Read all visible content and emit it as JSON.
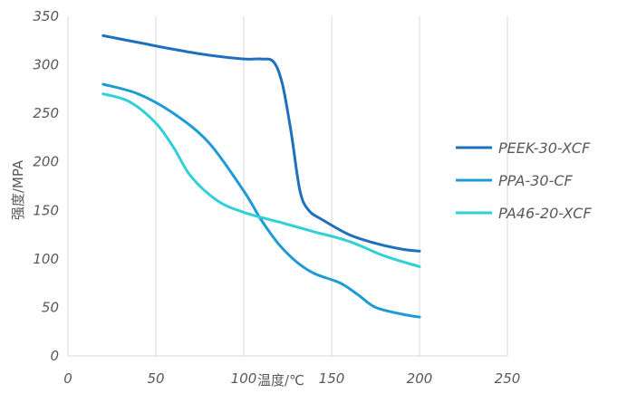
{
  "chart_data": {
    "type": "line",
    "xlabel": "温度/℃",
    "ylabel": "强度/MPA",
    "xlim": [
      0,
      250
    ],
    "ylim": [
      0,
      350
    ],
    "xticks": [
      0,
      50,
      100,
      150,
      200,
      250
    ],
    "yticks": [
      0,
      50,
      100,
      150,
      200,
      250,
      300,
      350
    ],
    "grid": "vertical",
    "legend_position": "right",
    "series": [
      {
        "name": "PEEK-30-XCF",
        "color": "#1f6fbf",
        "points": [
          [
            20,
            330
          ],
          [
            40,
            323
          ],
          [
            60,
            316
          ],
          [
            80,
            310
          ],
          [
            100,
            306
          ],
          [
            110,
            306
          ],
          [
            117,
            303
          ],
          [
            122,
            280
          ],
          [
            127,
            230
          ],
          [
            132,
            170
          ],
          [
            137,
            150
          ],
          [
            145,
            140
          ],
          [
            160,
            125
          ],
          [
            175,
            116
          ],
          [
            190,
            110
          ],
          [
            200,
            108
          ]
        ]
      },
      {
        "name": "PPA-30-CF",
        "color": "#1e9bd7",
        "points": [
          [
            20,
            280
          ],
          [
            40,
            270
          ],
          [
            60,
            250
          ],
          [
            80,
            220
          ],
          [
            100,
            170
          ],
          [
            110,
            140
          ],
          [
            120,
            115
          ],
          [
            130,
            97
          ],
          [
            140,
            85
          ],
          [
            155,
            75
          ],
          [
            165,
            63
          ],
          [
            175,
            50
          ],
          [
            190,
            43
          ],
          [
            200,
            40
          ]
        ]
      },
      {
        "name": "PA46-20-XCF",
        "color": "#2fd0d8",
        "points": [
          [
            20,
            270
          ],
          [
            35,
            262
          ],
          [
            50,
            240
          ],
          [
            60,
            215
          ],
          [
            70,
            185
          ],
          [
            85,
            160
          ],
          [
            100,
            148
          ],
          [
            120,
            138
          ],
          [
            140,
            128
          ],
          [
            160,
            118
          ],
          [
            180,
            103
          ],
          [
            200,
            92
          ]
        ]
      }
    ]
  }
}
